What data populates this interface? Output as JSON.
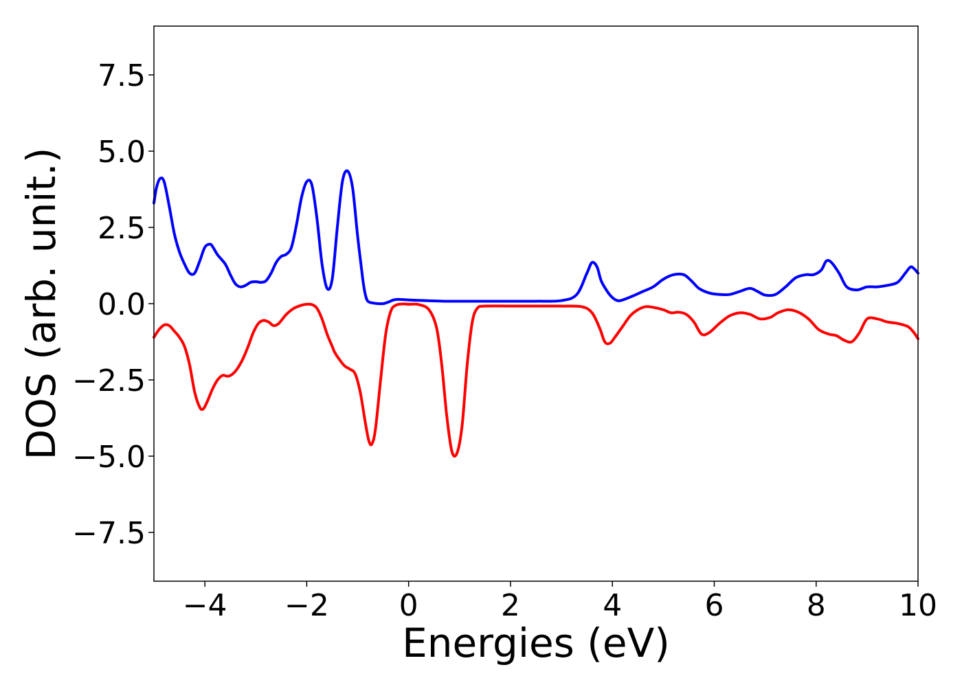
{
  "chart_data": {
    "type": "line",
    "xlabel": "Energies (eV)",
    "ylabel": "DOS (arb. unit.)",
    "xlim": [
      -5,
      10
    ],
    "ylim": [
      -9.1,
      9.1
    ],
    "xticks": [
      -4,
      -2,
      0,
      2,
      4,
      6,
      8,
      10
    ],
    "xtick_labels": [
      "−4",
      "−2",
      "0",
      "2",
      "4",
      "6",
      "8",
      "10"
    ],
    "yticks": [
      7.5,
      5.0,
      2.5,
      0.0,
      -2.5,
      -5.0,
      -7.5
    ],
    "ytick_labels": [
      "7.5",
      "5.0",
      "2.5",
      "0.0",
      "−2.5",
      "−5.0",
      "−7.5"
    ],
    "grid": false,
    "legend": "none",
    "series": [
      {
        "color": "#0000ff",
        "x": [
          -5.0,
          -4.95,
          -4.88,
          -4.8,
          -4.7,
          -4.6,
          -4.5,
          -4.4,
          -4.3,
          -4.2,
          -4.1,
          -4.0,
          -3.9,
          -3.84,
          -3.75,
          -3.6,
          -3.5,
          -3.4,
          -3.3,
          -3.2,
          -3.1,
          -3.0,
          -2.9,
          -2.8,
          -2.7,
          -2.6,
          -2.5,
          -2.4,
          -2.3,
          -2.2,
          -2.1,
          -2.0,
          -1.9,
          -1.8,
          -1.7,
          -1.6,
          -1.5,
          -1.4,
          -1.3,
          -1.2,
          -1.1,
          -1.0,
          -0.9,
          -0.85,
          -0.8,
          -0.7,
          -0.6,
          -0.5,
          -0.4,
          -0.3,
          -0.2,
          0.0,
          0.3,
          0.5,
          0.7,
          1.0,
          1.5,
          2.0,
          2.5,
          3.0,
          3.3,
          3.5,
          3.6,
          3.7,
          3.78,
          3.9,
          4.0,
          4.1,
          4.2,
          4.4,
          4.6,
          4.8,
          5.0,
          5.2,
          5.4,
          5.55,
          5.7,
          5.9,
          6.1,
          6.3,
          6.5,
          6.7,
          6.85,
          7.0,
          7.2,
          7.4,
          7.6,
          7.8,
          7.95,
          8.1,
          8.2,
          8.3,
          8.45,
          8.6,
          8.8,
          9.0,
          9.2,
          9.4,
          9.6,
          9.75,
          9.85,
          9.92,
          10.0
        ],
        "y": [
          3.3,
          3.8,
          4.1,
          4.0,
          3.2,
          2.3,
          1.7,
          1.3,
          1.0,
          1.0,
          1.4,
          1.85,
          1.95,
          1.85,
          1.6,
          1.3,
          0.95,
          0.65,
          0.55,
          0.6,
          0.7,
          0.72,
          0.7,
          0.75,
          1.0,
          1.35,
          1.55,
          1.62,
          1.85,
          2.6,
          3.5,
          4.0,
          3.9,
          2.8,
          1.3,
          0.5,
          0.8,
          2.5,
          4.0,
          4.35,
          3.8,
          2.2,
          0.8,
          0.3,
          0.08,
          0.02,
          0.0,
          0.0,
          0.05,
          0.12,
          0.14,
          0.12,
          0.1,
          0.09,
          0.08,
          0.08,
          0.08,
          0.08,
          0.08,
          0.1,
          0.3,
          1.0,
          1.35,
          1.2,
          0.75,
          0.4,
          0.2,
          0.1,
          0.12,
          0.25,
          0.4,
          0.55,
          0.8,
          0.95,
          0.95,
          0.75,
          0.5,
          0.35,
          0.3,
          0.3,
          0.4,
          0.5,
          0.4,
          0.28,
          0.3,
          0.55,
          0.85,
          0.95,
          0.95,
          1.1,
          1.4,
          1.35,
          1.0,
          0.55,
          0.45,
          0.55,
          0.55,
          0.6,
          0.7,
          1.0,
          1.2,
          1.15,
          1.0
        ]
      },
      {
        "color": "#ff0000",
        "x": [
          -5.0,
          -4.9,
          -4.8,
          -4.7,
          -4.6,
          -4.5,
          -4.4,
          -4.3,
          -4.2,
          -4.1,
          -4.03,
          -3.95,
          -3.85,
          -3.75,
          -3.65,
          -3.55,
          -3.45,
          -3.35,
          -3.25,
          -3.15,
          -3.05,
          -2.95,
          -2.85,
          -2.75,
          -2.65,
          -2.55,
          -2.4,
          -2.25,
          -2.1,
          -2.0,
          -1.9,
          -1.8,
          -1.7,
          -1.6,
          -1.5,
          -1.45,
          -1.35,
          -1.25,
          -1.15,
          -1.05,
          -0.95,
          -0.85,
          -0.78,
          -0.72,
          -0.65,
          -0.55,
          -0.45,
          -0.35,
          -0.25,
          -0.1,
          0.0,
          0.2,
          0.4,
          0.55,
          0.65,
          0.75,
          0.85,
          0.95,
          1.05,
          1.15,
          1.25,
          1.35,
          1.5,
          2.0,
          2.5,
          3.0,
          3.4,
          3.6,
          3.75,
          3.85,
          3.95,
          4.05,
          4.2,
          4.35,
          4.5,
          4.65,
          4.8,
          5.0,
          5.15,
          5.3,
          5.45,
          5.6,
          5.75,
          5.9,
          6.1,
          6.3,
          6.5,
          6.7,
          6.9,
          7.1,
          7.25,
          7.45,
          7.65,
          7.85,
          8.05,
          8.25,
          8.4,
          8.55,
          8.7,
          8.85,
          9.0,
          9.2,
          9.4,
          9.6,
          9.8,
          9.92,
          10.0
        ],
        "y": [
          -1.1,
          -0.85,
          -0.7,
          -0.72,
          -0.9,
          -1.1,
          -1.4,
          -2.0,
          -2.9,
          -3.4,
          -3.45,
          -3.2,
          -2.8,
          -2.5,
          -2.35,
          -2.38,
          -2.3,
          -2.1,
          -1.8,
          -1.4,
          -0.95,
          -0.65,
          -0.55,
          -0.6,
          -0.72,
          -0.65,
          -0.35,
          -0.15,
          -0.05,
          -0.02,
          -0.03,
          -0.15,
          -0.5,
          -1.0,
          -1.4,
          -1.6,
          -1.85,
          -2.05,
          -2.15,
          -2.3,
          -2.9,
          -3.9,
          -4.5,
          -4.6,
          -4.1,
          -2.5,
          -1.0,
          -0.25,
          -0.05,
          -0.01,
          -0.02,
          -0.03,
          -0.2,
          -0.8,
          -2.0,
          -3.7,
          -4.85,
          -4.9,
          -4.0,
          -2.0,
          -0.6,
          -0.15,
          -0.08,
          -0.08,
          -0.08,
          -0.08,
          -0.1,
          -0.3,
          -0.8,
          -1.25,
          -1.3,
          -1.1,
          -0.75,
          -0.4,
          -0.2,
          -0.1,
          -0.12,
          -0.2,
          -0.3,
          -0.28,
          -0.35,
          -0.6,
          -1.0,
          -0.95,
          -0.65,
          -0.4,
          -0.3,
          -0.35,
          -0.5,
          -0.45,
          -0.3,
          -0.2,
          -0.28,
          -0.5,
          -0.85,
          -1.0,
          -1.05,
          -1.2,
          -1.25,
          -0.95,
          -0.5,
          -0.5,
          -0.6,
          -0.65,
          -0.75,
          -0.95,
          -1.15
        ]
      }
    ]
  }
}
